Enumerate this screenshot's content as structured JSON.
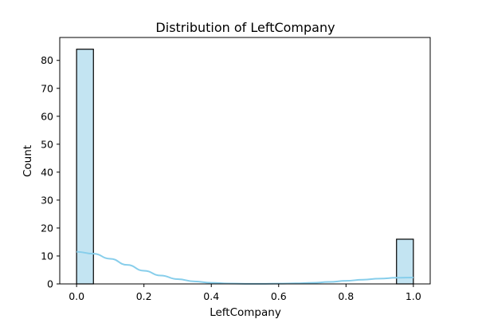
{
  "chart_data": {
    "type": "bar",
    "title": "Distribution of LeftCompany",
    "xlabel": "LeftCompany",
    "ylabel": "Count",
    "xlim": [
      -0.05,
      1.05
    ],
    "ylim": [
      0,
      88.2
    ],
    "x_ticks": [
      "0.0",
      "0.2",
      "0.4",
      "0.6",
      "0.8",
      "1.0"
    ],
    "x_tick_values": [
      0.0,
      0.2,
      0.4,
      0.6,
      0.8,
      1.0
    ],
    "y_ticks": [
      "0",
      "10",
      "20",
      "30",
      "40",
      "50",
      "60",
      "70",
      "80"
    ],
    "y_tick_values": [
      0,
      10,
      20,
      30,
      40,
      50,
      60,
      70,
      80
    ],
    "bins": [
      {
        "x_start": 0.0,
        "x_end": 0.05,
        "count": 84
      },
      {
        "x_start": 0.95,
        "x_end": 1.0,
        "count": 16
      }
    ],
    "kde": {
      "x": [
        0.0,
        0.05,
        0.1,
        0.15,
        0.2,
        0.25,
        0.3,
        0.35,
        0.4,
        0.45,
        0.5,
        0.55,
        0.6,
        0.65,
        0.7,
        0.75,
        0.8,
        0.85,
        0.9,
        0.95,
        1.0
      ],
      "y": [
        11.5,
        10.8,
        9.0,
        6.8,
        4.7,
        3.0,
        1.7,
        0.9,
        0.4,
        0.15,
        0.05,
        0.05,
        0.1,
        0.2,
        0.4,
        0.7,
        1.1,
        1.5,
        1.9,
        2.2,
        2.3
      ]
    },
    "colors": {
      "bar_fill": "#c3e4f2",
      "bar_edge": "#000000",
      "kde_line": "#87ceeb"
    },
    "grid": false
  }
}
